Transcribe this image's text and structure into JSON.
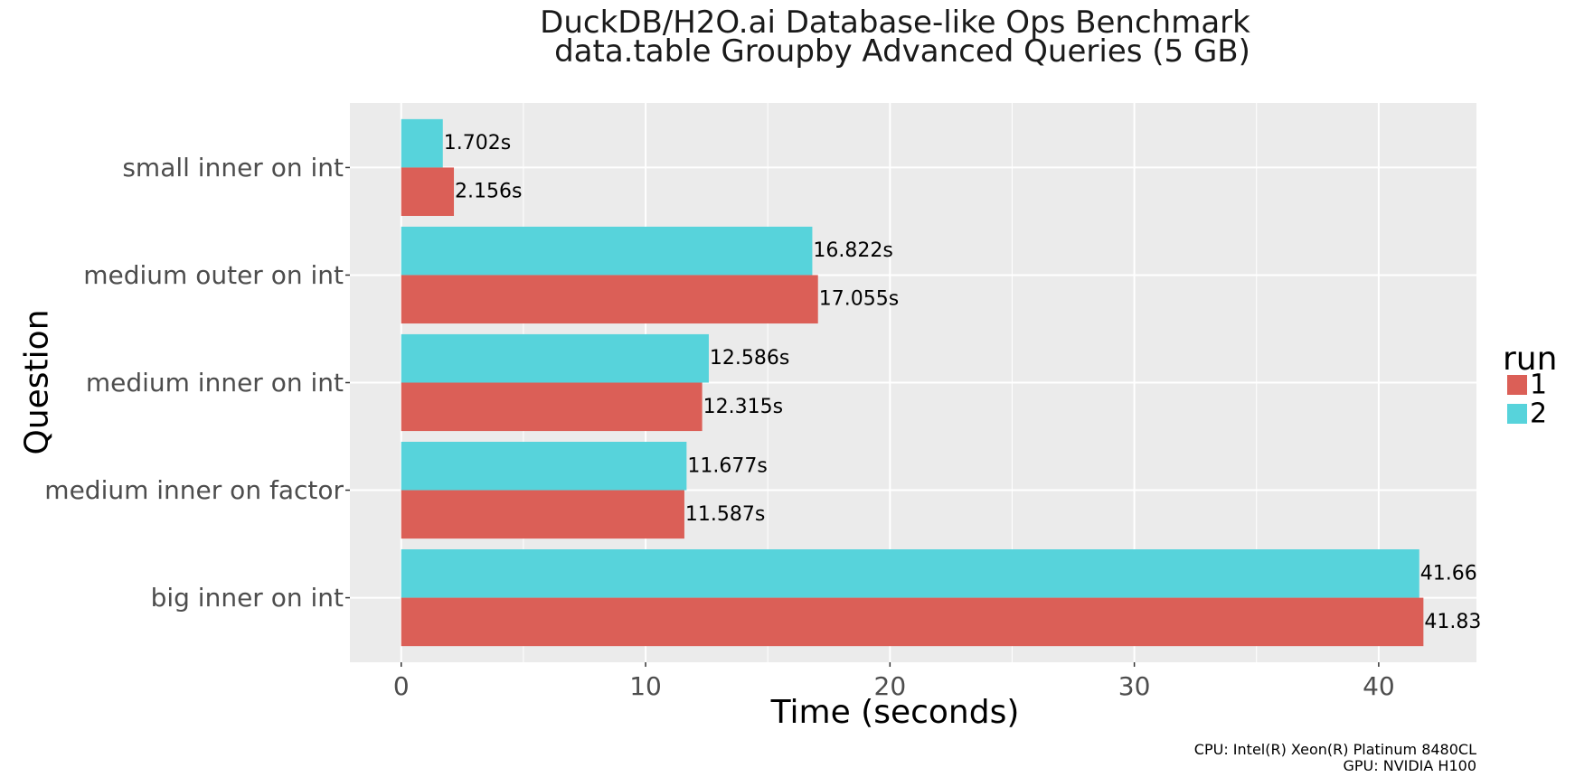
{
  "chart_data": {
    "type": "bar",
    "orientation": "horizontal",
    "title": "DuckDB/H2O.ai Database-like Ops Benchmark",
    "subtitle": "data.table Groupby Advanced Queries (5 GB)",
    "xlabel": "Time (seconds)",
    "ylabel": "Question",
    "xlim": [
      -2.1,
      44.0
    ],
    "x_ticks": [
      0,
      10,
      20,
      30,
      40
    ],
    "grid": true,
    "legend": {
      "title": "run",
      "position": "right"
    },
    "categories": [
      "small inner on int",
      "medium outer on int",
      "medium inner on int",
      "medium inner on factor",
      "big inner on int"
    ],
    "series": [
      {
        "name": "1",
        "color": "#DB5F57",
        "values": [
          2.156,
          17.055,
          12.315,
          11.587,
          41.83
        ],
        "labels": [
          "2.156s",
          "17.055s",
          "12.315s",
          "11.587s",
          "41.83"
        ]
      },
      {
        "name": "2",
        "color": "#57D3DB",
        "values": [
          1.702,
          16.822,
          12.586,
          11.677,
          41.66
        ],
        "labels": [
          "1.702s",
          "16.822s",
          "12.586s",
          "11.677s",
          "41.66"
        ]
      }
    ],
    "caption": [
      "CPU: Intel(R) Xeon(R) Platinum 8480CL",
      "GPU: NVIDIA H100"
    ]
  }
}
